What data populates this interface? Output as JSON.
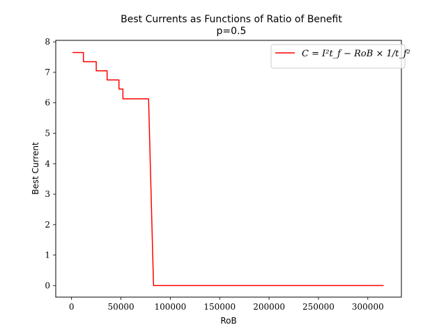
{
  "chart_data": {
    "type": "line",
    "title": "Best Currents as Functions of Ratio of Benefit",
    "subtitle": "p=0.5",
    "xlabel": "RoB",
    "ylabel": "Best Current",
    "xlim": [
      -16000,
      334000
    ],
    "ylim": [
      -0.38,
      8.05
    ],
    "x_ticks": [
      0,
      50000,
      100000,
      150000,
      200000,
      250000,
      300000
    ],
    "y_ticks": [
      0,
      1,
      2,
      3,
      4,
      5,
      6,
      7,
      8
    ],
    "grid": false,
    "legend_position": "top-right",
    "series": [
      {
        "name": "C = I²t_f − RoB × 1/t_f²",
        "color": "#ff0000",
        "x": [
          1000,
          12000,
          12000,
          25000,
          25000,
          36000,
          36000,
          48000,
          48000,
          52000,
          52000,
          57000,
          57000,
          78000,
          83000,
          316000
        ],
        "y": [
          7.65,
          7.65,
          7.35,
          7.35,
          7.05,
          7.05,
          6.75,
          6.75,
          6.45,
          6.45,
          6.13,
          6.13,
          6.13,
          6.13,
          0,
          0
        ]
      }
    ]
  }
}
